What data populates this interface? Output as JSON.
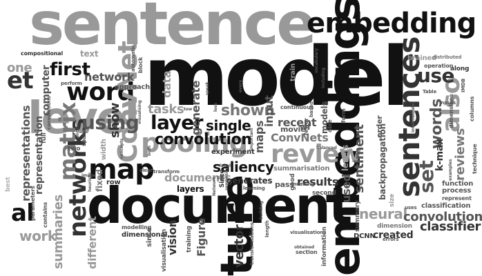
{
  "words": {
    "sentence": "sentence",
    "model": "model",
    "document": "document",
    "embeddings": "embeddings",
    "embedding": "embedding",
    "level": "level",
    "sentences": "sentences",
    "word": "word",
    "ConvNet": "ConvNet",
    "pooling": "pooling",
    "map": "map",
    "review": "review",
    "convolution": "convolution",
    "layer": "layer",
    "networks": "networks",
    "matrix": "matrix",
    "using": "using",
    "first": "first",
    "et": "et",
    "al": "al",
    "one": "one",
    "work": "work",
    "also": "also",
    "use": "use",
    "set": "set",
    "words": "words",
    "saliency": "saliency",
    "shown": "shown",
    "single": "single",
    "tasks": "tasks",
    "documents": "documents",
    "show": "show",
    "network": "network",
    "neural": "neural",
    "convolutional": "convolutional",
    "classifier": "classifier",
    "representations": "representations",
    "representation": "representation",
    "summaries": "summaries",
    "different": "different",
    "reviews": "reviews",
    "ture": "ture",
    "vector": "vector",
    "vision": "vision",
    "Figure": "Figure",
    "created": "created",
    "DCNN": "DCNN",
    "maps": "maps",
    "input": "input",
    "sentiment": "sentiment",
    "results": "results",
    "used": "used",
    "levels": "levels",
    "generate": "generate",
    "generates": "generates",
    "ConvNets": "ConvNets",
    "computer": "computer",
    "approach": "approach",
    "layers": "layers",
    "summarisation": "summarisation",
    "recent": "recent",
    "text": "text",
    "compositional": "compositional",
    "data": "data",
    "train": "train",
    "brained": "brained",
    "operation": "operation",
    "along": "along",
    "experiment": "experiment",
    "movie": "movie",
    "wf": "wf",
    "models": "models",
    "k-max": "k-max",
    "backpropagation": "backpropagation",
    "classification": "classification",
    "function": "function",
    "process": "process",
    "dimensional": "dimensional",
    "modelling": "modelling",
    "training": "training",
    "visualisation": "visualisation",
    "dimension": "dimension",
    "fixed": "fixed",
    "row": "row",
    "width": "width",
    "pass": "pass",
    "Since": "Since",
    "since": "since",
    "order": "order",
    "continuous": "continuous",
    "fewer": "fewer",
    "able": "able",
    "form": "form",
    "summary": "summary",
    "size": "size",
    "second": "second",
    "good": "good",
    "information": "information",
    "section": "section",
    "best": "best",
    "full": "full",
    "two": "two",
    "space": "space",
    "parameters": "parameters",
    "contains": "contains",
    "automatic": "automatic",
    "block": "block",
    "perform": "perform",
    "convolutions": "convolutions",
    "distributed": "distributed",
    "inputs": "inputs",
    "dimensions": "dimensions",
    "columns": "columns",
    "IMDB": "IMDB",
    "Table": "Table",
    "technique": "technique",
    "represent": "represent",
    "uses": "uses",
    "errors": "errors",
    "meaning": "meaning",
    "transform": "transform",
    "clear": "clear",
    "learning": "learning",
    "visualisations": "visualisations",
    "length": "length",
    "transformations": "transformations",
    "entire": "entire",
    "heuristic": "heuristic",
    "concepts": "concepts",
    "vocabulary": "vocabulary",
    "including": "including",
    "based": "based",
    "obtained": "obtained",
    "label": "label",
    "every": "every",
    "intermediate": "intermediate",
    "examples": "examples",
    "important": "important",
    "semantics": "semantics",
    "building": "building",
    "speak": "speak",
    "Network": "Network",
    "tow": "tow",
    "loss": "loss",
    "both": "both",
    "visualising": "visualising",
    "image": "image",
    "balanced": "balanced",
    "like": "like"
  }
}
